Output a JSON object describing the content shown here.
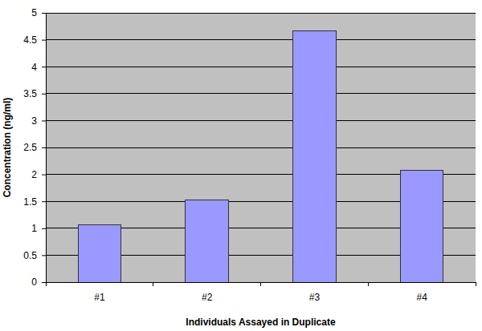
{
  "chart_data": {
    "type": "bar",
    "x_label": "Individuals Assayed in Duplicate",
    "y_label": "Concentration (ng/ml)",
    "categories": [
      "#1",
      "#2",
      "#3",
      "#4"
    ],
    "values": [
      1.07,
      1.52,
      4.67,
      2.07
    ],
    "color": "#9999ff",
    "ylim": [
      0,
      5
    ],
    "yticks": [
      0,
      0.5,
      1,
      1.5,
      2,
      2.5,
      3,
      3.5,
      4,
      4.5,
      5
    ],
    "grid": true
  }
}
